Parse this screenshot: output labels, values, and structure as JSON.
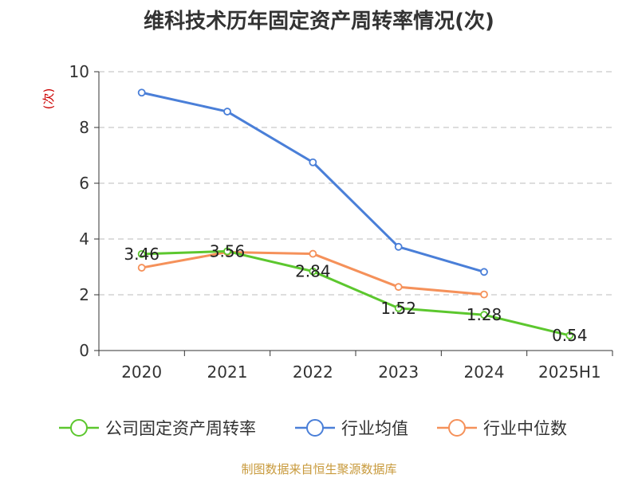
{
  "title": "维科技术历年固定资产周转率情况(次)",
  "source": "制图数据来自恒生聚源数据库",
  "colors": {
    "company": "#5cc72e",
    "industry_avg": "#4a7fd8",
    "industry_median": "#f5915a",
    "grid": "#bbbbbb",
    "axis": "#333333",
    "unit": "#cc0000"
  },
  "chart_data": {
    "type": "line",
    "title": "维科技术历年固定资产周转率情况(次)",
    "ylabel": "(次)",
    "xlabel": "",
    "ylim": [
      0,
      10
    ],
    "yticks": [
      0,
      2,
      4,
      6,
      8,
      10
    ],
    "grid": true,
    "legend_position": "bottom",
    "categories": [
      "2020",
      "2021",
      "2022",
      "2023",
      "2024",
      "2025H1"
    ],
    "series": [
      {
        "name": "公司固定资产周转率",
        "color_key": "company",
        "values": [
          3.46,
          3.56,
          2.84,
          1.52,
          1.28,
          0.54
        ],
        "labels": [
          "3.46",
          "3.56",
          "2.84",
          "1.52",
          "1.28",
          "0.54"
        ],
        "show_labels": true
      },
      {
        "name": "行业均值",
        "color_key": "industry_avg",
        "values": [
          9.25,
          8.57,
          6.75,
          3.72,
          2.82,
          null
        ],
        "show_labels": false
      },
      {
        "name": "行业中位数",
        "color_key": "industry_median",
        "values": [
          2.97,
          3.53,
          3.47,
          2.28,
          2.01,
          null
        ],
        "show_labels": false
      }
    ]
  }
}
